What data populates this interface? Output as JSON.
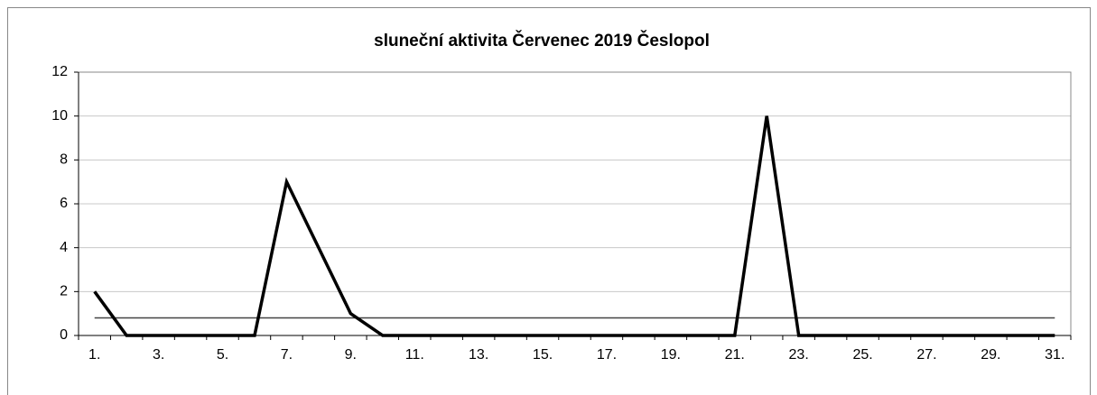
{
  "chart_data": {
    "type": "line",
    "title": "sluneční aktivita Červenec 2019 Česlopol",
    "categories": [
      "1.",
      null,
      "3.",
      null,
      "5.",
      null,
      "7.",
      null,
      "9.",
      null,
      "11.",
      null,
      "13.",
      null,
      "15.",
      null,
      "17.",
      null,
      "19.",
      null,
      "21.",
      null,
      "23.",
      null,
      "25.",
      null,
      "27.",
      null,
      "29.",
      null,
      "31."
    ],
    "series": [
      {
        "color": "#000000",
        "values": [
          2,
          0,
          0,
          0,
          0,
          0,
          7,
          4,
          1,
          0,
          0,
          0,
          0,
          0,
          0,
          0,
          0,
          0,
          0,
          0,
          0,
          10,
          0,
          0,
          0,
          0,
          0,
          0,
          0,
          0,
          0
        ]
      },
      {
        "color": "#444444",
        "values": [
          0.8,
          0.8,
          0.8,
          0.8,
          0.8,
          0.8,
          0.8,
          0.8,
          0.8,
          0.8,
          0.8,
          0.8,
          0.8,
          0.8,
          0.8,
          0.8,
          0.8,
          0.8,
          0.8,
          0.8,
          0.8,
          0.8,
          0.8,
          0.8,
          0.8,
          0.8,
          0.8,
          0.8,
          0.8,
          0.8,
          0.8
        ]
      }
    ],
    "ylim": [
      0,
      12
    ],
    "yticks": [
      0,
      2,
      4,
      6,
      8,
      10,
      12
    ],
    "grid": true
  }
}
